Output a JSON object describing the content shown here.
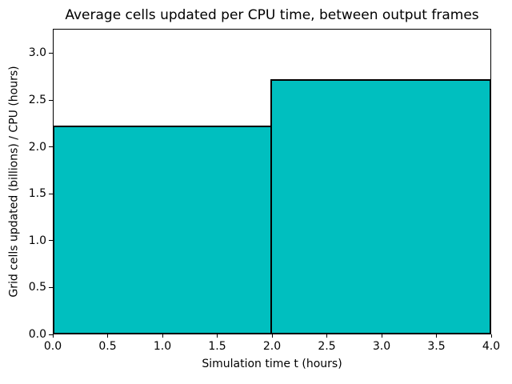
{
  "chart_data": {
    "type": "bar",
    "title": "Average cells updated per CPU time, between output frames",
    "xlabel": "Simulation time t (hours)",
    "ylabel": "Grid cells updated (billions) / CPU (hours)",
    "bars": [
      {
        "x_start": 0.0,
        "x_end": 2.0,
        "value": 2.23
      },
      {
        "x_start": 2.0,
        "x_end": 4.0,
        "value": 2.72
      }
    ],
    "xlim": [
      0.0,
      4.0
    ],
    "ylim": [
      0.0,
      3.26
    ],
    "x_tick_labels": [
      "0.0",
      "0.5",
      "1.0",
      "1.5",
      "2.0",
      "2.5",
      "3.0",
      "3.5",
      "4.0"
    ],
    "y_tick_labels": [
      "0.0",
      "0.5",
      "1.0",
      "1.5",
      "2.0",
      "2.5",
      "3.0"
    ],
    "grid": false,
    "legend": null,
    "colors": {
      "bar_fill": "#00BFBF",
      "bar_edge": "#000000",
      "text": "#000000",
      "background": "#ffffff"
    }
  }
}
